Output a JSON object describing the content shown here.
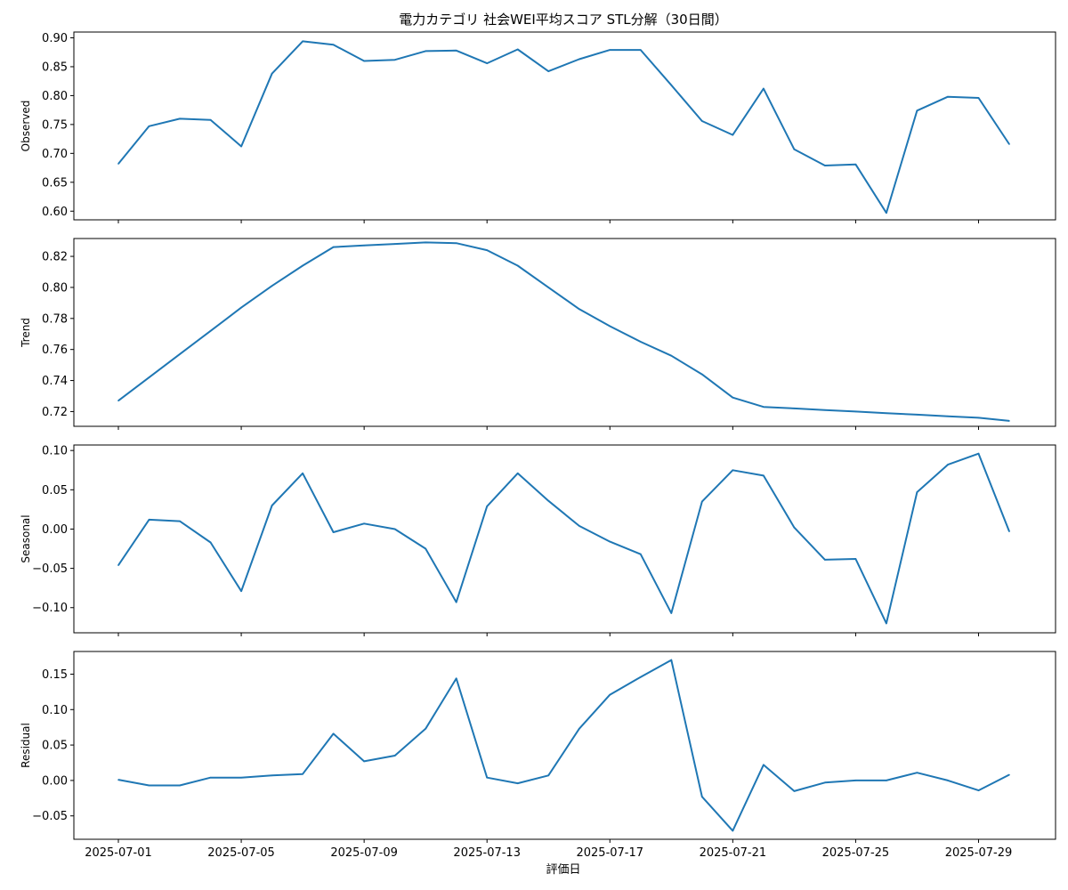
{
  "title": "電力カテゴリ 社会WEI平均スコア STL分解（30日間）",
  "xlabel": "評価日",
  "chart_data": {
    "type": "line",
    "title": "電力カテゴリ 社会WEI平均スコア STL分解（30日間）",
    "xlabel": "評価日",
    "x": [
      "2025-07-01",
      "2025-07-02",
      "2025-07-03",
      "2025-07-04",
      "2025-07-05",
      "2025-07-06",
      "2025-07-07",
      "2025-07-08",
      "2025-07-09",
      "2025-07-10",
      "2025-07-11",
      "2025-07-12",
      "2025-07-13",
      "2025-07-14",
      "2025-07-15",
      "2025-07-16",
      "2025-07-17",
      "2025-07-18",
      "2025-07-19",
      "2025-07-20",
      "2025-07-21",
      "2025-07-22",
      "2025-07-23",
      "2025-07-24",
      "2025-07-25",
      "2025-07-26",
      "2025-07-27",
      "2025-07-28",
      "2025-07-29",
      "2025-07-30"
    ],
    "xticks": [
      "2025-07-01",
      "2025-07-05",
      "2025-07-09",
      "2025-07-13",
      "2025-07-17",
      "2025-07-21",
      "2025-07-25",
      "2025-07-29"
    ],
    "color": "#1f77b4",
    "panels": [
      {
        "ylabel": "Observed",
        "ylim": [
          0.585,
          0.91
        ],
        "yticks": [
          "0.60",
          "0.65",
          "0.70",
          "0.75",
          "0.80",
          "0.85",
          "0.90"
        ],
        "values": [
          0.682,
          0.747,
          0.76,
          0.758,
          0.712,
          0.838,
          0.894,
          0.888,
          0.86,
          0.862,
          0.877,
          0.878,
          0.856,
          0.88,
          0.842,
          0.863,
          0.879,
          0.879,
          0.818,
          0.756,
          0.732,
          0.812,
          0.707,
          0.679,
          0.681,
          0.597,
          0.774,
          0.798,
          0.796,
          0.716
        ]
      },
      {
        "ylabel": "Trend",
        "ylim": [
          0.7105,
          0.8315
        ],
        "yticks": [
          "0.72",
          "0.74",
          "0.76",
          "0.78",
          "0.80",
          "0.82"
        ],
        "values": [
          0.727,
          0.742,
          0.757,
          0.772,
          0.787,
          0.801,
          0.814,
          0.826,
          0.827,
          0.828,
          0.829,
          0.8285,
          0.824,
          0.814,
          0.8,
          0.786,
          0.775,
          0.765,
          0.756,
          0.744,
          0.729,
          0.723,
          0.722,
          0.721,
          0.72,
          0.719,
          0.718,
          0.717,
          0.716,
          0.714
        ]
      },
      {
        "ylabel": "Seasonal",
        "ylim": [
          -0.132,
          0.107
        ],
        "yticks": [
          "−0.10",
          "−0.05",
          "0.00",
          "0.05",
          "0.10"
        ],
        "values": [
          -0.046,
          0.012,
          0.01,
          -0.017,
          -0.079,
          0.03,
          0.071,
          -0.004,
          0.007,
          0.0,
          -0.025,
          -0.093,
          0.029,
          0.071,
          0.036,
          0.004,
          -0.016,
          -0.032,
          -0.107,
          0.035,
          0.075,
          0.068,
          0.002,
          -0.039,
          -0.038,
          -0.12,
          0.047,
          0.082,
          0.096,
          -0.003
        ]
      },
      {
        "ylabel": "Residual",
        "ylim": [
          -0.083,
          0.182
        ],
        "yticks": [
          "−0.05",
          "0.00",
          "0.05",
          "0.10",
          "0.15"
        ],
        "values": [
          0.001,
          -0.007,
          -0.007,
          0.004,
          0.004,
          0.007,
          0.009,
          0.066,
          0.027,
          0.035,
          0.073,
          0.144,
          0.004,
          -0.004,
          0.007,
          0.073,
          0.121,
          0.146,
          0.17,
          -0.023,
          -0.071,
          0.022,
          -0.015,
          -0.003,
          0.0,
          0.0,
          0.011,
          0.0,
          -0.014,
          0.008
        ]
      }
    ]
  }
}
